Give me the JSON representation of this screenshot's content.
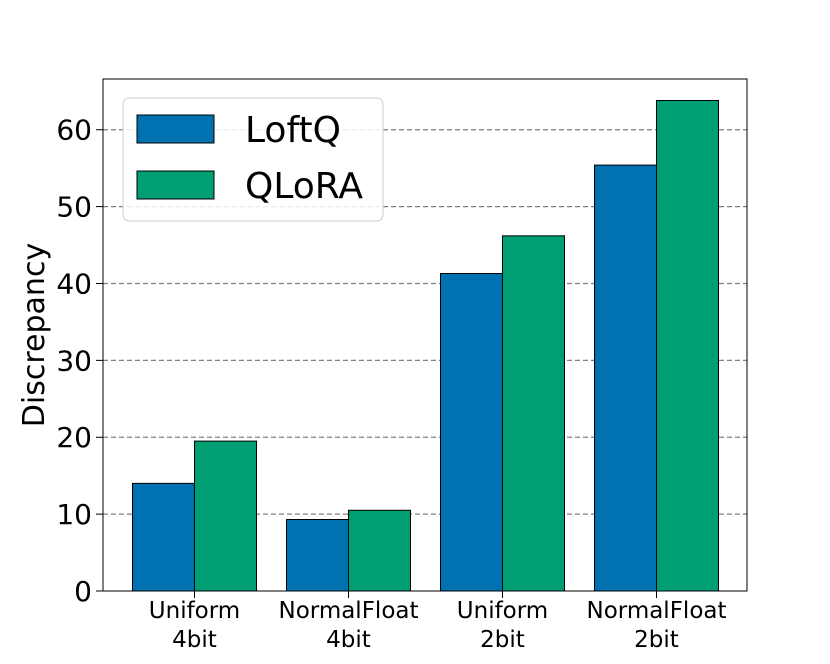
{
  "chart_data": {
    "type": "bar",
    "categories": [
      [
        "Uniform",
        "4bit"
      ],
      [
        "NormalFloat",
        "4bit"
      ],
      [
        "Uniform",
        "2bit"
      ],
      [
        "NormalFloat",
        "2bit"
      ]
    ],
    "series": [
      {
        "name": "LoftQ",
        "color": "#0072b2",
        "values": [
          14.0,
          9.3,
          41.3,
          55.4
        ]
      },
      {
        "name": "QLoRA",
        "color": "#009e73",
        "values": [
          19.5,
          10.5,
          46.2,
          63.8
        ]
      }
    ],
    "title": "",
    "xlabel": "",
    "ylabel": "Discrepancy",
    "ylim": [
      0,
      66.6
    ],
    "yticks": [
      0,
      10,
      20,
      30,
      40,
      50,
      60
    ],
    "grid": "horizontal dashed",
    "legend_position": "top-left"
  }
}
